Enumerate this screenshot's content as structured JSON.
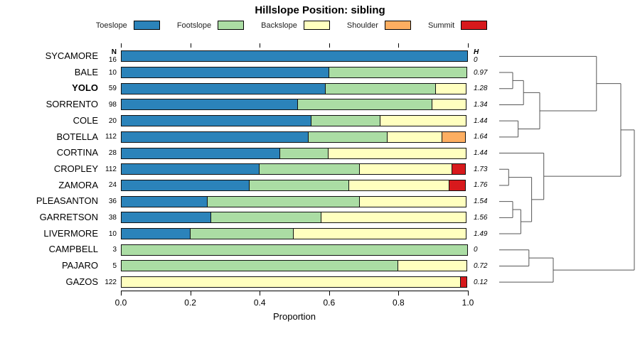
{
  "title": "Hillslope Position: sibling",
  "xlabel": "Proportion",
  "col_headers": {
    "n": "N",
    "h": "H"
  },
  "x_ticks": [
    "0.0",
    "0.2",
    "0.4",
    "0.6",
    "0.8",
    "1.0"
  ],
  "highlighted_category": "YOLO",
  "legend": [
    {
      "label": "Toeslope",
      "color": "#2B83BA"
    },
    {
      "label": "Footslope",
      "color": "#ABDDA4"
    },
    {
      "label": "Backslope",
      "color": "#FFFFBF"
    },
    {
      "label": "Shoulder",
      "color": "#FDAE61"
    },
    {
      "label": "Summit",
      "color": "#D7191C"
    }
  ],
  "chart_data": {
    "type": "bar",
    "stacked": true,
    "orientation": "horizontal",
    "xlim": [
      0.0,
      1.0
    ],
    "categories": [
      "SYCAMORE",
      "BALE",
      "YOLO",
      "SORRENTO",
      "COLE",
      "BOTELLA",
      "CORTINA",
      "CROPLEY",
      "ZAMORA",
      "PLEASANTON",
      "GARRETSON",
      "LIVERMORE",
      "CAMPBELL",
      "PAJARO",
      "GAZOS"
    ],
    "n_values": [
      16,
      10,
      59,
      98,
      20,
      112,
      28,
      112,
      24,
      36,
      38,
      10,
      3,
      5,
      122
    ],
    "h_values": [
      "0",
      "0.97",
      "1.28",
      "1.34",
      "1.44",
      "1.64",
      "1.44",
      "1.73",
      "1.76",
      "1.54",
      "1.56",
      "1.49",
      "0",
      "0.72",
      "0.12"
    ],
    "series": [
      {
        "name": "Toeslope",
        "color": "#2B83BA",
        "values": [
          1.0,
          0.6,
          0.59,
          0.51,
          0.55,
          0.54,
          0.46,
          0.4,
          0.37,
          0.25,
          0.26,
          0.2,
          0.0,
          0.0,
          0.0
        ]
      },
      {
        "name": "Footslope",
        "color": "#ABDDA4",
        "values": [
          0.0,
          0.4,
          0.32,
          0.39,
          0.2,
          0.23,
          0.14,
          0.29,
          0.29,
          0.44,
          0.32,
          0.3,
          1.0,
          0.8,
          0.0
        ]
      },
      {
        "name": "Backslope",
        "color": "#FFFFBF",
        "values": [
          0.0,
          0.0,
          0.09,
          0.1,
          0.25,
          0.16,
          0.4,
          0.27,
          0.29,
          0.31,
          0.42,
          0.5,
          0.0,
          0.2,
          0.98
        ]
      },
      {
        "name": "Shoulder",
        "color": "#FDAE61",
        "values": [
          0.0,
          0.0,
          0.0,
          0.0,
          0.0,
          0.07,
          0.0,
          0.0,
          0.0,
          0.0,
          0.0,
          0.0,
          0.0,
          0.0,
          0.0
        ]
      },
      {
        "name": "Summit",
        "color": "#D7191C",
        "values": [
          0.0,
          0.0,
          0.0,
          0.0,
          0.0,
          0.0,
          0.0,
          0.04,
          0.05,
          0.0,
          0.0,
          0.0,
          0.0,
          0.0,
          0.02
        ]
      }
    ],
    "dendrogram": {
      "height": 1.0,
      "children": [
        {
          "height": 0.9,
          "children": [
            {
              "height": 0.72,
              "children": [
                {
                  "leaf": 0
                },
                {
                  "height": 0.3,
                  "children": [
                    {
                      "height": 0.18,
                      "children": [
                        {
                          "height": 0.1,
                          "children": [
                            {
                              "leaf": 1
                            },
                            {
                              "leaf": 2
                            }
                          ]
                        },
                        {
                          "leaf": 3
                        }
                      ]
                    },
                    {
                      "height": 0.14,
                      "children": [
                        {
                          "leaf": 4
                        },
                        {
                          "leaf": 5
                        }
                      ]
                    }
                  ]
                }
              ]
            },
            {
              "height": 0.33,
              "children": [
                {
                  "leaf": 6
                },
                {
                  "height": 0.24,
                  "children": [
                    {
                      "height": 0.07,
                      "children": [
                        {
                          "leaf": 7
                        },
                        {
                          "leaf": 8
                        }
                      ]
                    },
                    {
                      "height": 0.16,
                      "children": [
                        {
                          "height": 0.1,
                          "children": [
                            {
                              "leaf": 9
                            },
                            {
                              "leaf": 10
                            }
                          ]
                        },
                        {
                          "leaf": 11
                        }
                      ]
                    }
                  ]
                }
              ]
            }
          ]
        },
        {
          "height": 0.4,
          "children": [
            {
              "height": 0.22,
              "children": [
                {
                  "leaf": 12
                },
                {
                  "leaf": 13
                }
              ]
            },
            {
              "leaf": 14
            }
          ]
        }
      ]
    }
  }
}
